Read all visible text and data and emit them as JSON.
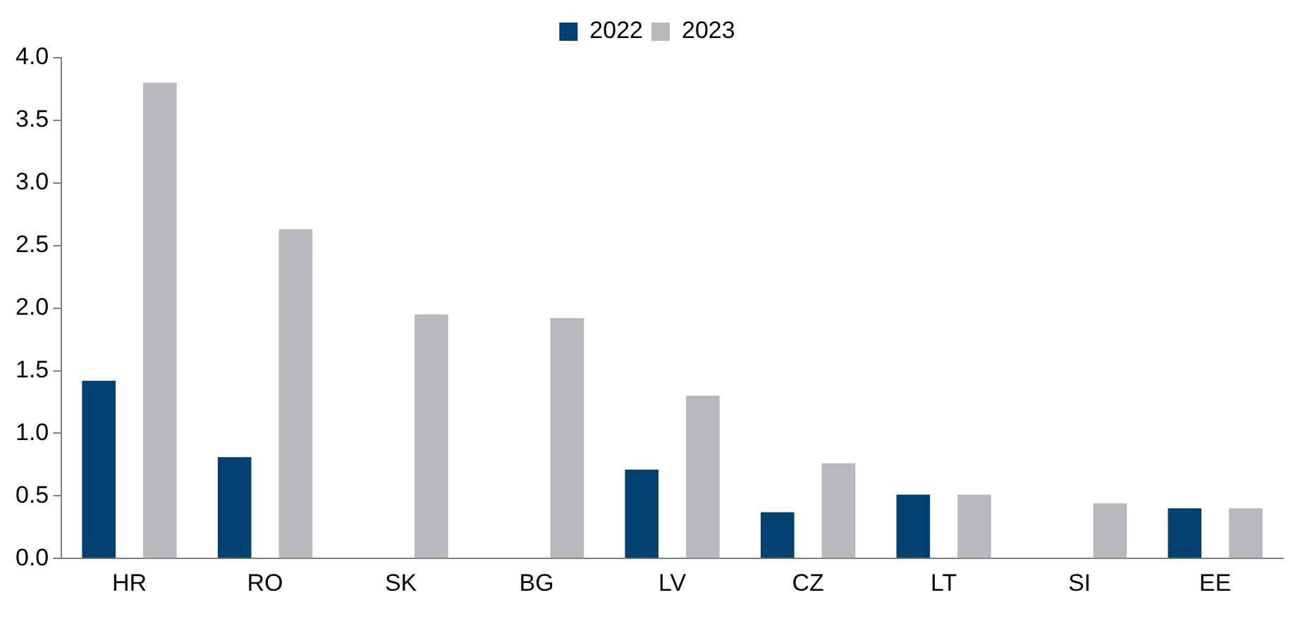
{
  "chart_data": {
    "type": "bar",
    "categories": [
      "HR",
      "RO",
      "SK",
      "BG",
      "LV",
      "CZ",
      "LT",
      "SI",
      "EE"
    ],
    "series": [
      {
        "name": "2022",
        "color": "#004170",
        "values": [
          1.42,
          0.81,
          null,
          null,
          0.71,
          0.37,
          0.51,
          null,
          0.4
        ]
      },
      {
        "name": "2023",
        "color": "#b7b8bc",
        "values": [
          3.8,
          2.63,
          1.95,
          1.92,
          1.3,
          0.76,
          0.51,
          0.44,
          0.4
        ]
      }
    ],
    "ylim": [
      0,
      4
    ],
    "yticks": [
      {
        "value": 0,
        "label": "0.0"
      },
      {
        "value": 0.5,
        "label": "0.5"
      },
      {
        "value": 1,
        "label": "1.0"
      },
      {
        "value": 1.5,
        "label": "1.5"
      },
      {
        "value": 2,
        "label": "2.0"
      },
      {
        "value": 2.5,
        "label": "2.5"
      },
      {
        "value": 3,
        "label": "3.0"
      },
      {
        "value": 3.5,
        "label": "3.5"
      },
      {
        "value": 4,
        "label": "4.0"
      }
    ],
    "grid": false,
    "legend": "top"
  }
}
